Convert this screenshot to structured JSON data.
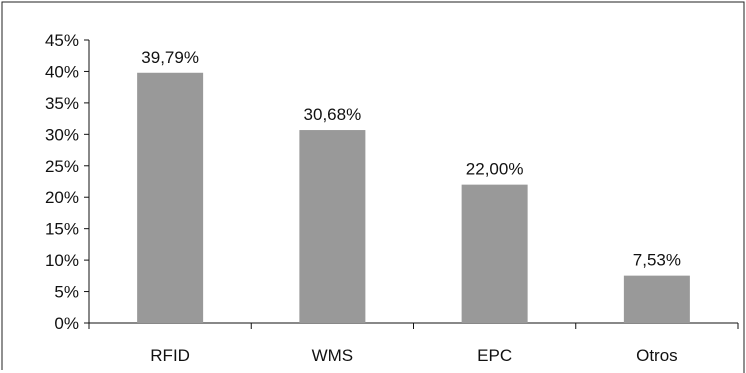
{
  "chart_data": {
    "type": "bar",
    "title": "",
    "xlabel": "",
    "ylabel": "",
    "categories": [
      "RFID",
      "WMS",
      "EPC",
      "Otros"
    ],
    "values": [
      39.79,
      30.68,
      22.0,
      7.53
    ],
    "data_labels": [
      "39,79%",
      "30,68%",
      "22,00%",
      "7,53%"
    ],
    "ylim": [
      0,
      45
    ],
    "yticks": [
      0,
      5,
      10,
      15,
      20,
      25,
      30,
      35,
      40,
      45
    ],
    "ytick_labels": [
      "0%",
      "5%",
      "10%",
      "15%",
      "20%",
      "25%",
      "30%",
      "35%",
      "40%",
      "45%"
    ],
    "grid": false,
    "legend": "none",
    "colors": {
      "bar": "#999999",
      "axis": "#111111",
      "frame": "#222222",
      "text": "#111111"
    }
  }
}
